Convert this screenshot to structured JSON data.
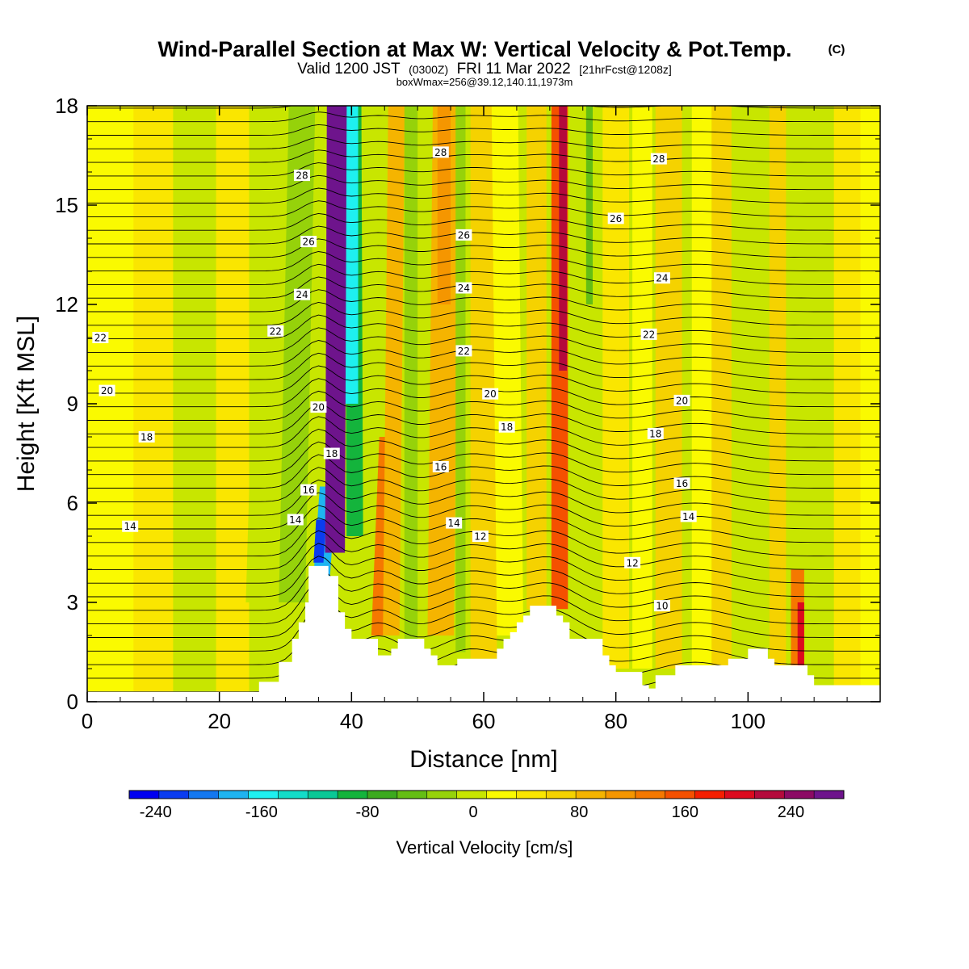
{
  "title": "Wind-Parallel Section at Max W: Vertical Velocity & Pot.Temp.",
  "title_mark": "(C)",
  "subtitle_parts": [
    "Valid 1200 JST",
    "(0300Z)",
    "FRI 11 Mar 2022",
    "[21hrFcst@1208z]"
  ],
  "subtitle2": "boxWmax=256@39.12,140.11,1973m",
  "chart_data": {
    "type": "heatmap",
    "xlabel": "Distance [nm]",
    "ylabel": "Height [Kft MSL]",
    "xlim": [
      0,
      120
    ],
    "ylim": [
      0,
      18
    ],
    "x_ticks": [
      0,
      20,
      40,
      60,
      80,
      100
    ],
    "y_ticks": [
      0,
      3,
      6,
      9,
      12,
      15,
      18
    ],
    "colorbar": {
      "label": "Vertical Velocity [cm/s]",
      "min": -260,
      "max": 280,
      "step": 20,
      "tick_values": [
        -240,
        -160,
        -80,
        0,
        80,
        160,
        240
      ],
      "colors": [
        "#0000f0",
        "#0a3cf0",
        "#1478f0",
        "#1eb4f0",
        "#1ef0f0",
        "#14dcc8",
        "#0ac896",
        "#14b43c",
        "#3caa1e",
        "#64be14",
        "#96d20a",
        "#c8e600",
        "#fafa00",
        "#fae600",
        "#f5d200",
        "#f5b400",
        "#f59600",
        "#f57800",
        "#f55000",
        "#f51e00",
        "#dc0a1e",
        "#b40a3c",
        "#8c0a64",
        "#6e148c"
      ]
    },
    "terrain_profile": [
      [
        0,
        0.3
      ],
      [
        25,
        0.3
      ],
      [
        26,
        0.6
      ],
      [
        28,
        0.6
      ],
      [
        29,
        1.2
      ],
      [
        30,
        1.2
      ],
      [
        31,
        1.9
      ],
      [
        32,
        2.4
      ],
      [
        33,
        3.0
      ],
      [
        33.5,
        4.1
      ],
      [
        36,
        4.1
      ],
      [
        36.5,
        3.8
      ],
      [
        37,
        3.8
      ],
      [
        38,
        2.7
      ],
      [
        39,
        2.2
      ],
      [
        40,
        1.9
      ],
      [
        43,
        1.9
      ],
      [
        44,
        1.4
      ],
      [
        45,
        1.4
      ],
      [
        46,
        1.6
      ],
      [
        47,
        1.9
      ],
      [
        50,
        1.9
      ],
      [
        51,
        1.6
      ],
      [
        52,
        1.4
      ],
      [
        53,
        1.1
      ],
      [
        54,
        1.1
      ],
      [
        55,
        1.1
      ],
      [
        56,
        1.3
      ],
      [
        58,
        1.3
      ],
      [
        60,
        1.3
      ],
      [
        61,
        1.3
      ],
      [
        62,
        1.6
      ],
      [
        63,
        1.9
      ],
      [
        64,
        2.1
      ],
      [
        65,
        2.4
      ],
      [
        66,
        2.6
      ],
      [
        67,
        2.9
      ],
      [
        70,
        2.9
      ],
      [
        71,
        2.6
      ],
      [
        72,
        2.4
      ],
      [
        73,
        1.9
      ],
      [
        77,
        1.9
      ],
      [
        78,
        1.4
      ],
      [
        79,
        1.1
      ],
      [
        80,
        0.9
      ],
      [
        84,
        0.5
      ],
      [
        85,
        0.4
      ],
      [
        86,
        0.8
      ],
      [
        88,
        0.8
      ],
      [
        89,
        1.1
      ],
      [
        91,
        1.1
      ],
      [
        92,
        1.1
      ],
      [
        96,
        1.1
      ],
      [
        97,
        1.3
      ],
      [
        99,
        1.3
      ],
      [
        100,
        1.6
      ],
      [
        102,
        1.6
      ],
      [
        103,
        1.3
      ],
      [
        104,
        1.1
      ],
      [
        108,
        1.1
      ],
      [
        109,
        0.8
      ],
      [
        110,
        0.5
      ],
      [
        120,
        0.5
      ]
    ],
    "theta_contour_labels": [
      {
        "x": 32.5,
        "y": 15.9,
        "text": "28"
      },
      {
        "x": 53.5,
        "y": 16.6,
        "text": "28"
      },
      {
        "x": 86.5,
        "y": 16.4,
        "text": "28"
      },
      {
        "x": 33.5,
        "y": 13.9,
        "text": "26"
      },
      {
        "x": 57.0,
        "y": 14.1,
        "text": "26"
      },
      {
        "x": 80.0,
        "y": 14.6,
        "text": "26"
      },
      {
        "x": 32.5,
        "y": 12.3,
        "text": "24"
      },
      {
        "x": 57.0,
        "y": 12.5,
        "text": "24"
      },
      {
        "x": 87.0,
        "y": 12.8,
        "text": "24"
      },
      {
        "x": 2.0,
        "y": 11.0,
        "text": "22"
      },
      {
        "x": 28.5,
        "y": 11.2,
        "text": "22"
      },
      {
        "x": 57.0,
        "y": 10.6,
        "text": "22"
      },
      {
        "x": 85.0,
        "y": 11.1,
        "text": "22"
      },
      {
        "x": 3.0,
        "y": 9.4,
        "text": "20"
      },
      {
        "x": 35.0,
        "y": 8.9,
        "text": "20"
      },
      {
        "x": 61.0,
        "y": 9.3,
        "text": "20"
      },
      {
        "x": 90.0,
        "y": 9.1,
        "text": "20"
      },
      {
        "x": 9.0,
        "y": 8.0,
        "text": "18"
      },
      {
        "x": 37.0,
        "y": 7.5,
        "text": "18"
      },
      {
        "x": 63.5,
        "y": 8.3,
        "text": "18"
      },
      {
        "x": 86.0,
        "y": 8.1,
        "text": "18"
      },
      {
        "x": 53.5,
        "y": 7.1,
        "text": "16"
      },
      {
        "x": 33.5,
        "y": 6.4,
        "text": "16"
      },
      {
        "x": 90.0,
        "y": 6.6,
        "text": "16"
      },
      {
        "x": 6.5,
        "y": 5.3,
        "text": "14"
      },
      {
        "x": 31.5,
        "y": 5.5,
        "text": "14"
      },
      {
        "x": 55.5,
        "y": 5.4,
        "text": "14"
      },
      {
        "x": 91.0,
        "y": 5.6,
        "text": "14"
      },
      {
        "x": 59.5,
        "y": 5.0,
        "text": "12"
      },
      {
        "x": 82.5,
        "y": 4.2,
        "text": "12"
      },
      {
        "x": 87.0,
        "y": 2.9,
        "text": "10"
      }
    ]
  }
}
